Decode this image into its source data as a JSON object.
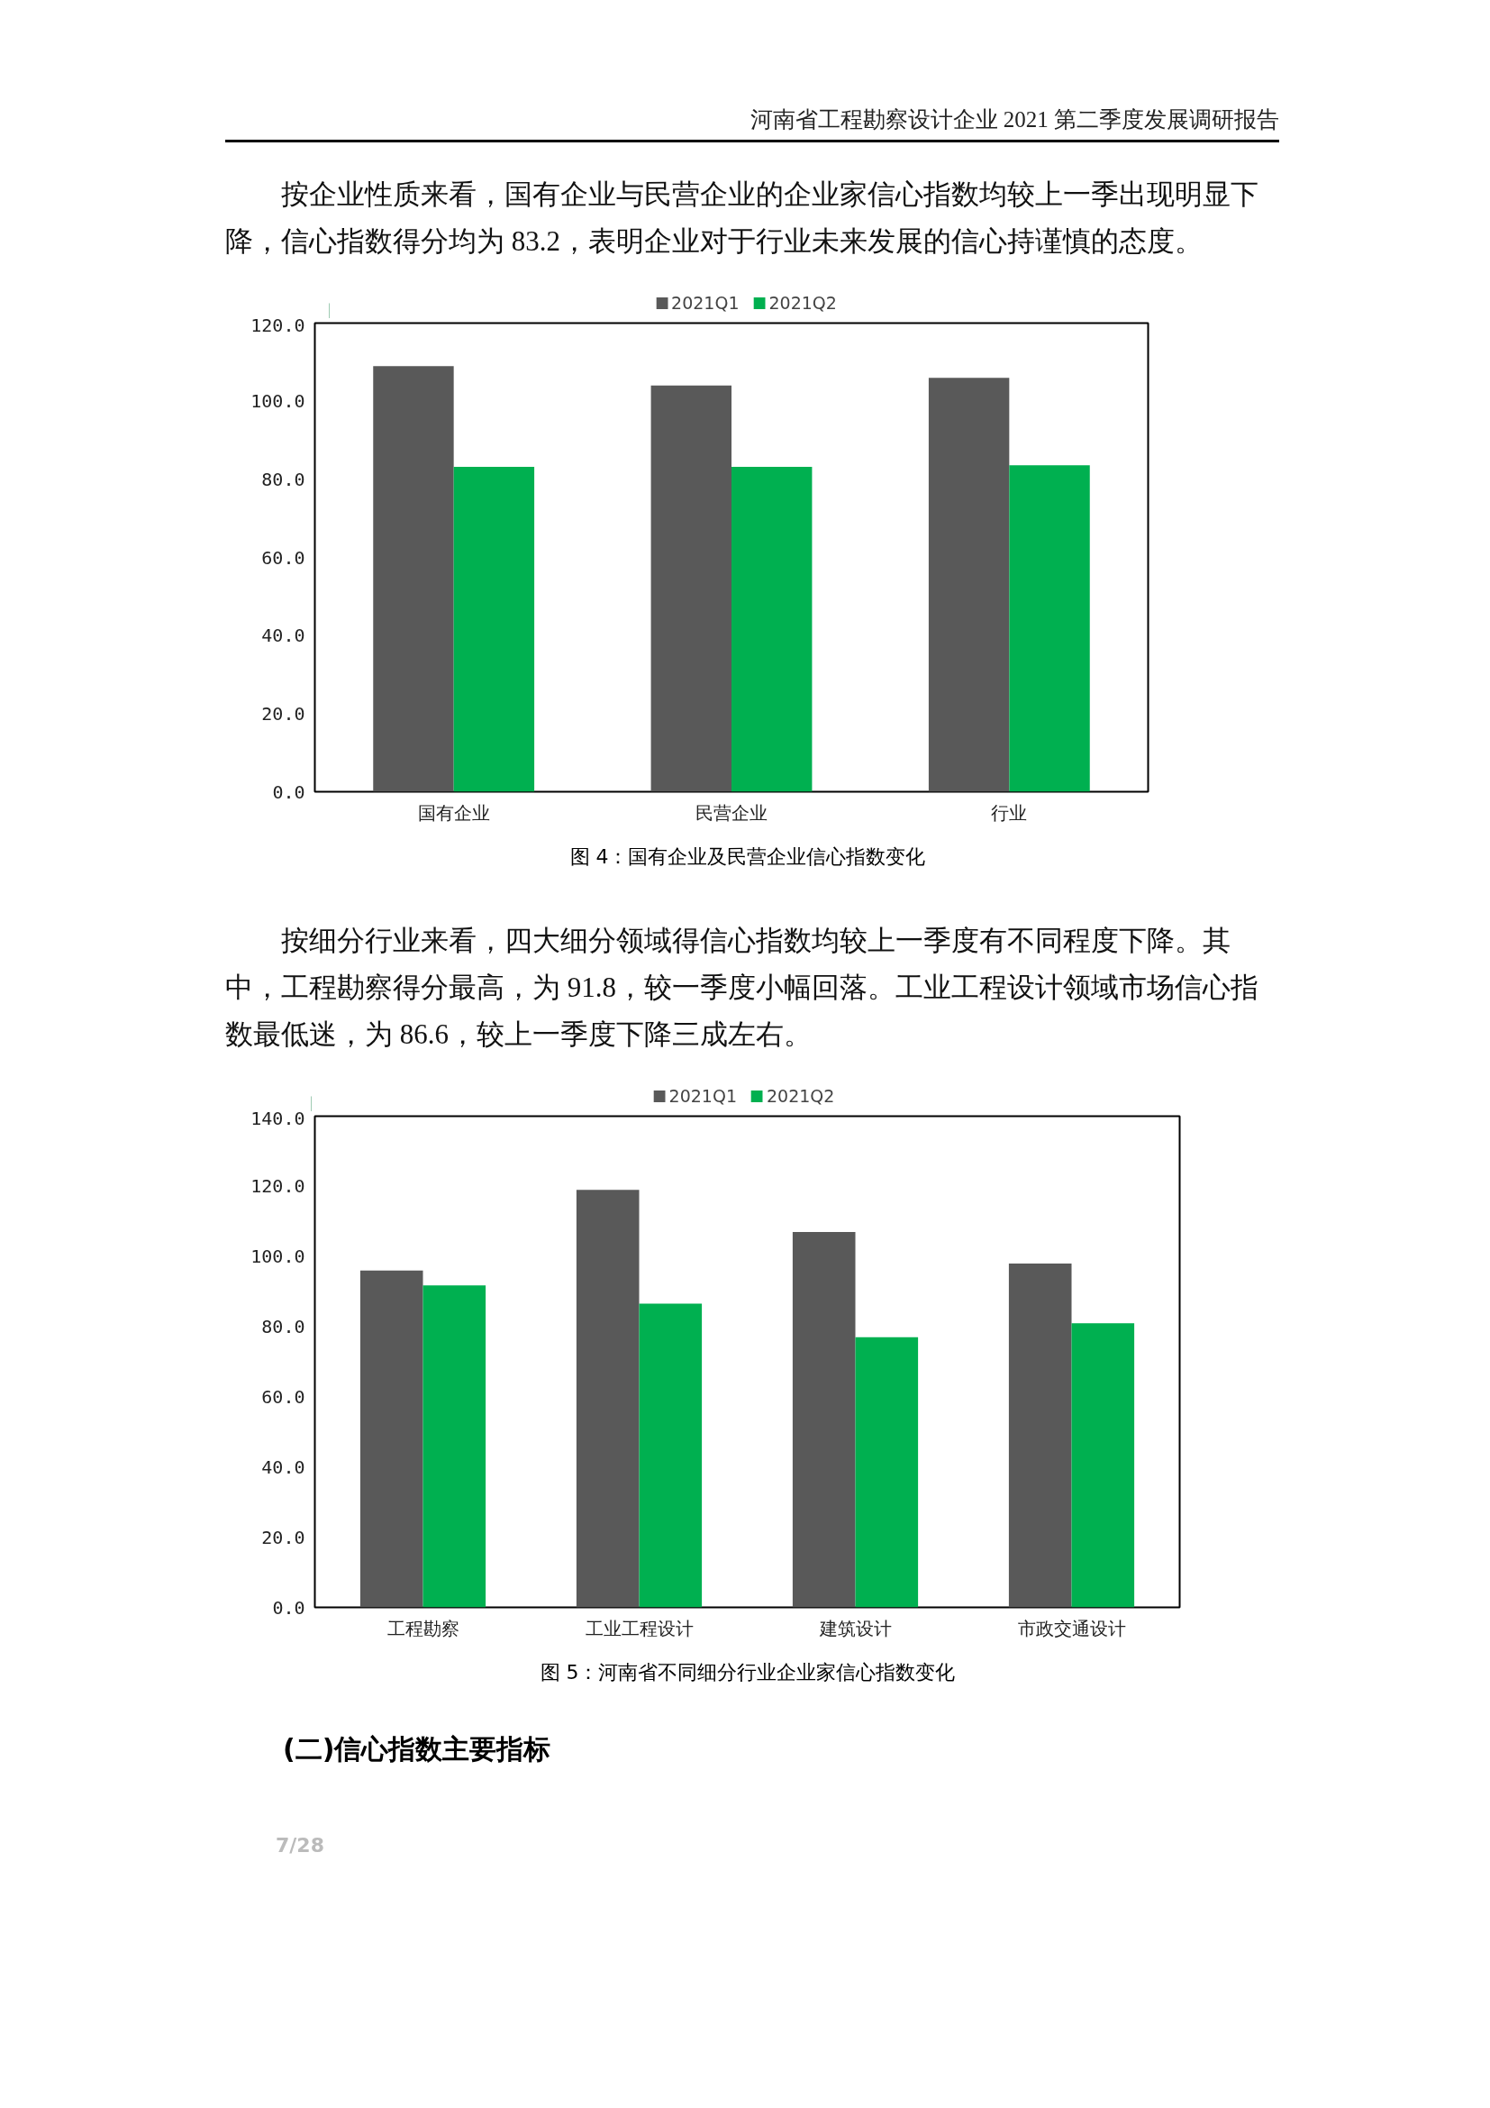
{
  "chart_data": [
    {
      "type": "bar",
      "title": "图 4：国有企业及民营企业信心指数变化",
      "categories": [
        "国有企业",
        "民营企业",
        "行业"
      ],
      "series": [
        {
          "name": "2021Q1",
          "color": "#595959",
          "values": [
            109,
            104,
            106
          ]
        },
        {
          "name": "2021Q2",
          "color": "#00b050",
          "values": [
            83.2,
            83.2,
            83.6
          ]
        }
      ],
      "ylim": [
        0,
        120
      ],
      "yticks": [
        {
          "value": 0,
          "label": "0.0"
        },
        {
          "value": 20,
          "label": "20.0"
        },
        {
          "value": 40,
          "label": "40.0"
        },
        {
          "value": 60,
          "label": "60.0"
        },
        {
          "value": 80,
          "label": "80.0"
        },
        {
          "value": 100,
          "label": "100.0"
        },
        {
          "value": 120,
          "label": "120.0"
        }
      ],
      "grid": false,
      "legend": "top",
      "annotations": [
        "河南省工程勘察设计企业 2021 第二季度发展调研报告",
        "按企业性质来看，国有企业与民营企业的企业家信心指数均较上一季出现明显下降，信心指数得分均为 83.2，表明企业对于行业未来发展的信心持谨慎的态度。"
      ]
    },
    {
      "type": "bar",
      "title": "图 5：河南省不同细分行业企业家信心指数变化",
      "categories": [
        "工程勘察",
        "工业工程设计",
        "建筑设计",
        "市政交通设计"
      ],
      "series": [
        {
          "name": "2021Q1",
          "color": "#595959",
          "values": [
            96,
            119,
            107,
            98
          ]
        },
        {
          "name": "2021Q2",
          "color": "#00b050",
          "values": [
            91.8,
            86.6,
            77,
            81
          ]
        }
      ],
      "ylim": [
        0,
        140
      ],
      "yticks": [
        {
          "value": 0,
          "label": "0.0"
        },
        {
          "value": 20,
          "label": "20.0"
        },
        {
          "value": 40,
          "label": "40.0"
        },
        {
          "value": 60,
          "label": "60.0"
        },
        {
          "value": 80,
          "label": "80.0"
        },
        {
          "value": 100,
          "label": "100.0"
        },
        {
          "value": 120,
          "label": "120.0"
        },
        {
          "value": 140,
          "label": "140.0"
        }
      ],
      "grid": false,
      "legend": "top",
      "annotations": [
        "按细分行业来看，四大细分领域得信心指数均较上一季度有不同程度下降。其中，工程勘察得分最高，为 91.8，较一季度小幅回落。工业工程设计领域市场信心指数最低迷，为 86.6，较上一季度下降三成左右。",
        "(二)信心指数主要指标",
        "7/28"
      ]
    }
  ]
}
